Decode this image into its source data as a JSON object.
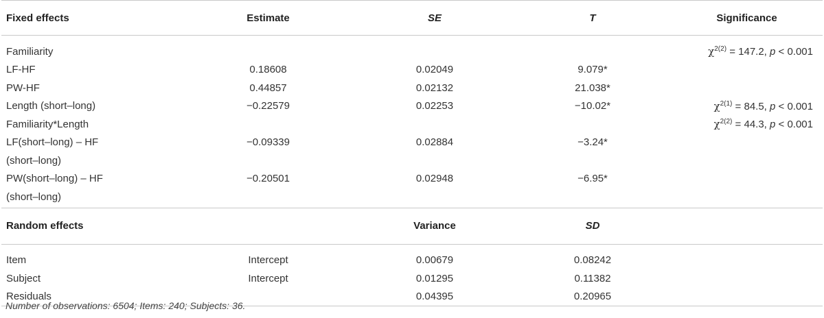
{
  "fixed_header": {
    "col1": "Fixed effects",
    "col2": "Estimate",
    "col3": "SE",
    "col4": "T",
    "col5": "Significance"
  },
  "fixed_rows": [
    {
      "label": "Familiarity",
      "estimate": "",
      "se": "",
      "t": "",
      "sig": "χ2(2) = 147.2, p < 0.001"
    },
    {
      "label": "LF-HF",
      "estimate": "0.18608",
      "se": "0.02049",
      "t": "9.079*",
      "sig": ""
    },
    {
      "label": "PW-HF",
      "estimate": "0.44857",
      "se": "0.02132",
      "t": "21.038*",
      "sig": ""
    },
    {
      "label": "Length (short–long)",
      "estimate": "−0.22579",
      "se": "0.02253",
      "t": "−10.02*",
      "sig": "χ2(1) = 84.5, p < 0.001"
    },
    {
      "label": "Familiarity*Length",
      "estimate": "",
      "se": "",
      "t": "",
      "sig": "χ2(2) = 44.3, p < 0.001"
    },
    {
      "label": "LF(short–long) – HF",
      "estimate": "−0.09339",
      "se": "0.02884",
      "t": "−3.24*",
      "sig": ""
    },
    {
      "label": "(short–long)",
      "estimate": "",
      "se": "",
      "t": "",
      "sig": ""
    },
    {
      "label": "PW(short–long) – HF",
      "estimate": "−0.20501",
      "se": "0.02948",
      "t": "−6.95*",
      "sig": ""
    },
    {
      "label": "(short–long)",
      "estimate": "",
      "se": "",
      "t": "",
      "sig": ""
    }
  ],
  "sig_parts": {
    "chi": "χ",
    "sup_2_2": "2(2)",
    "sup_2_1": "2(1)",
    "val_familiarity": " = 147.2, ",
    "val_length": " = 84.5, ",
    "val_interaction": " = 44.3, ",
    "p": "p",
    "lt": " < 0.001"
  },
  "random_header": {
    "col1": "Random effects",
    "col3": "Variance",
    "col4": "SD"
  },
  "random_rows": [
    {
      "group": "Item",
      "name": "Intercept",
      "variance": "0.00679",
      "sd": "0.08242"
    },
    {
      "group": "Subject",
      "name": "Intercept",
      "variance": "0.01295",
      "sd": "0.11382"
    },
    {
      "group": "Residuals",
      "name": "",
      "variance": "0.04395",
      "sd": "0.20965"
    }
  ],
  "note": "Number of observations: 6504; Items: 240; Subjects: 36."
}
